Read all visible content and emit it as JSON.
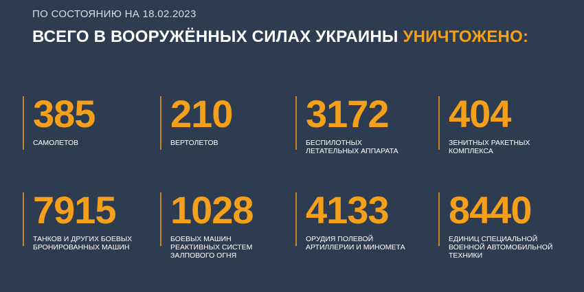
{
  "header": {
    "date": "ПО СОСТОЯНИЮ НА 18.02.2023",
    "title": "ВСЕГО В ВООРУЖЁННЫХ СИЛАХ УКРАИНЫ",
    "highlight": "УНИЧТОЖЕНО:"
  },
  "items": [
    {
      "value": 385,
      "label": [
        "САМОЛЕТОВ"
      ]
    },
    {
      "value": 210,
      "label": [
        "ВЕРТОЛЕТОВ"
      ]
    },
    {
      "value": 3172,
      "label": [
        "БЕСПИЛОТНЫХ",
        "ЛЕТАТЕЛЬНЫХ АППАРАТА"
      ]
    },
    {
      "value": 404,
      "label": [
        "ЗЕНИТНЫХ РАКЕТНЫХ",
        "КОМПЛЕКСА"
      ]
    },
    {
      "value": 7915,
      "label": [
        "ТАНКОВ И ДРУГИХ БОЕВЫХ",
        "БРОНИРОВАННЫХ МАШИН"
      ]
    },
    {
      "value": 1028,
      "label": [
        "БОЕВЫХ МАШИН",
        "РЕАКТИВНЫХ СИСТЕМ",
        "ЗАЛПОВОГО ОГНЯ"
      ]
    },
    {
      "value": 4133,
      "label": [
        "ОРУДИЯ ПОЛЕВОЙ",
        "АРТИЛЛЕРИИ И МИНОМЕТА"
      ]
    },
    {
      "value": 8440,
      "label": [
        "ЕДИНИЦ СПЕЦИАЛЬНОЙ",
        "ВОЕННОЙ АВТОМОБИЛЬНОЙ",
        "ТЕХНИКИ"
      ]
    }
  ]
}
